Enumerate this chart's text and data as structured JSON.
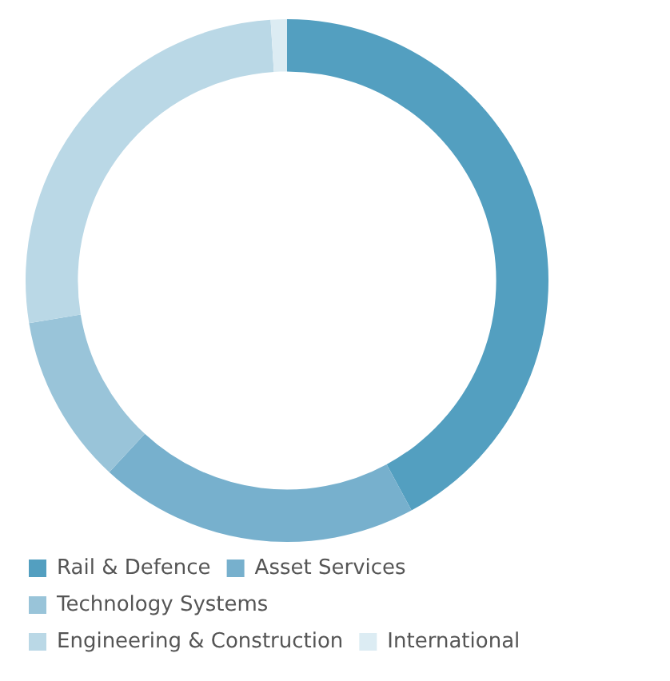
{
  "chart_data": {
    "type": "donut",
    "categories": [
      "Rail & Defence",
      "Asset Services",
      "Technology Systems",
      "Engineering & Construction",
      "International"
    ],
    "values": [
      42.1,
      19.8,
      10.5,
      26.6,
      1.0
    ],
    "colors": [
      "#539fc0",
      "#77b0cd",
      "#99c4d9",
      "#bad8e6",
      "#dcecf3"
    ],
    "legend": "bottom"
  }
}
